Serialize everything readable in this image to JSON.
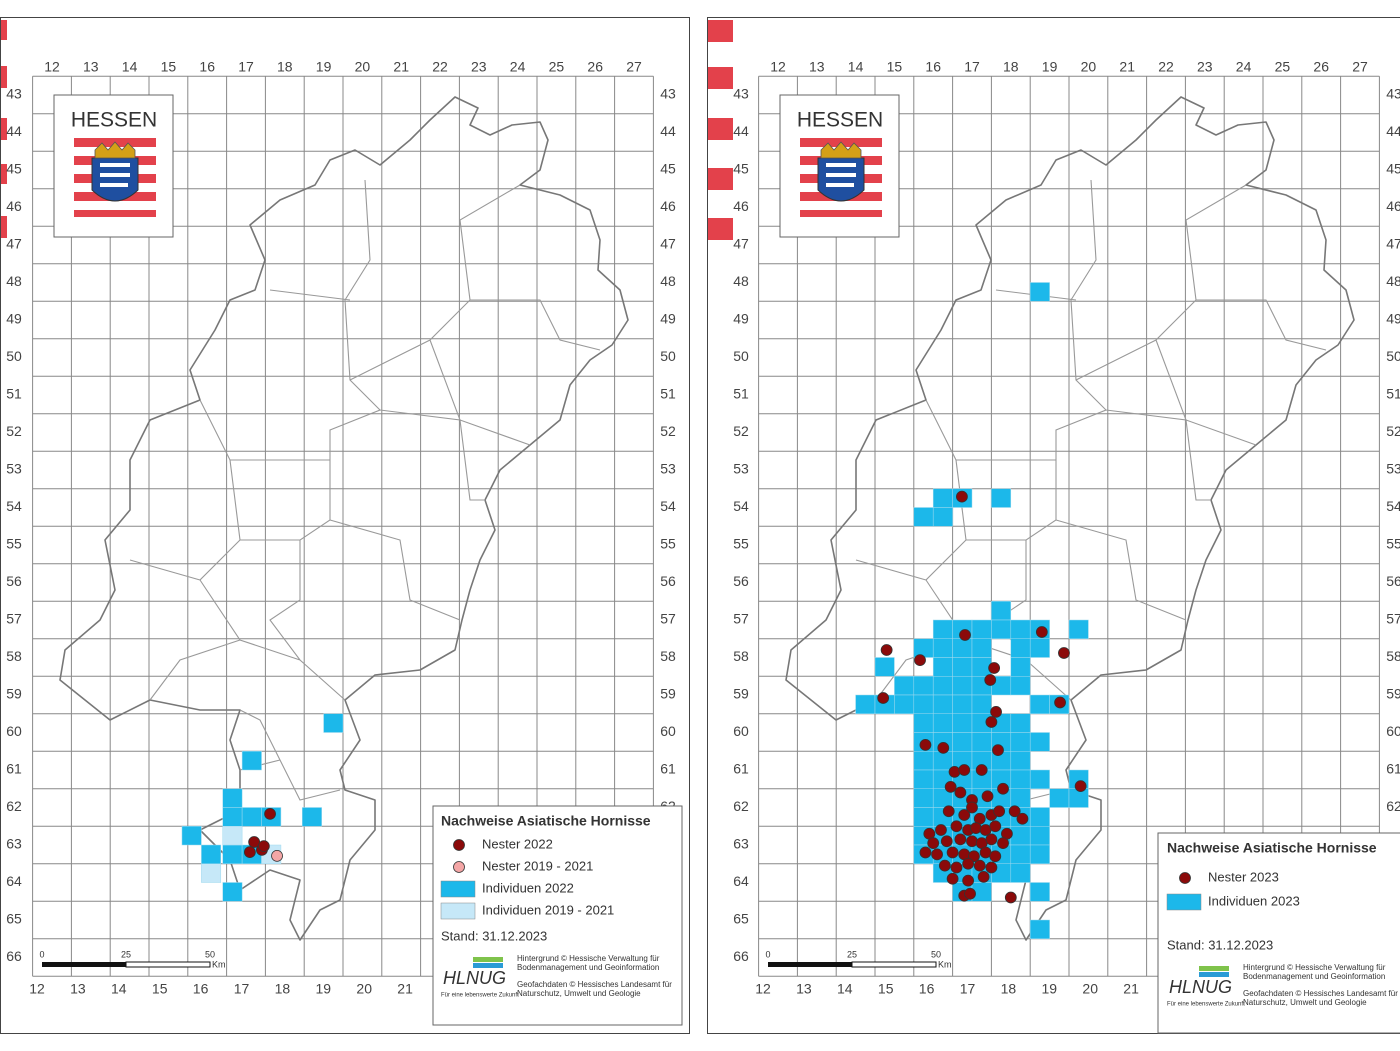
{
  "panels": [
    {
      "logo": "HESSEN",
      "col_labels": [
        12,
        13,
        14,
        15,
        16,
        17,
        18,
        19,
        20,
        21,
        22,
        23,
        24,
        25,
        26,
        27
      ],
      "row_labels": [
        43,
        44,
        45,
        46,
        47,
        48,
        49,
        50,
        51,
        52,
        53,
        54,
        55,
        56,
        57,
        58,
        59,
        60,
        61,
        62,
        63,
        64,
        65,
        66
      ],
      "bottom_labels": [
        12,
        13,
        14,
        15,
        16,
        17,
        18,
        19,
        20,
        21
      ],
      "legend": {
        "title": "Nachweise Asiatische Hornisse",
        "stand": "Stand: 31.12.2023",
        "items": [
          {
            "name": "Nester 2022",
            "kind": "dot",
            "color": "#8b0a0a",
            "points": [
              [
                17.62,
                62.17
              ],
              [
                17.21,
                62.92
              ],
              [
                17.41,
                63.13
              ],
              [
                17.1,
                63.19
              ],
              [
                17.46,
                63.03
              ]
            ]
          },
          {
            "name": "Nester 2019 - 2021",
            "kind": "dot",
            "color": "#f4a6a6",
            "points": [
              [
                17.8,
                63.29
              ]
            ]
          },
          {
            "name": "Individuen 2022",
            "kind": "square",
            "color": "#1cb8ea",
            "rows": [
              {
                "y": 59.75,
                "x": [
                  19.25
                ]
              },
              {
                "y": 60.75,
                "x": [
                  17.15
                ]
              },
              {
                "y": 61.75,
                "x": [
                  16.65
                ]
              },
              {
                "y": 62.25,
                "x": [
                  16.65,
                  17.15,
                  17.65,
                  18.7
                ]
              },
              {
                "y": 62.75,
                "x": [
                  15.6
                ]
              },
              {
                "y": 63.25,
                "x": [
                  16.1,
                  16.65,
                  17.15
                ]
              },
              {
                "y": 64.25,
                "x": [
                  16.65
                ]
              }
            ]
          },
          {
            "name": "Individuen 2019 - 2021",
            "kind": "square",
            "color": "#c6e8f8",
            "rows": [
              {
                "y": 62.75,
                "x": [
                  16.65
                ]
              },
              {
                "y": 63.25,
                "x": [
                  17.65
                ]
              },
              {
                "y": 63.75,
                "x": [
                  16.1
                ]
              }
            ]
          }
        ]
      },
      "scale": {
        "labels": [
          "0",
          "25",
          "50"
        ],
        "unit": "Km"
      },
      "credits": {
        "logo": "HLNUG",
        "tagline": "Für eine lebenswerte Zukunft",
        "lines": [
          "Hintergrund © Hessische Verwaltung für",
          "Bodenmanagement und Geoinformation",
          "Geofachdaten © Hessisches Landesamt für",
          "Naturschutz, Umwelt und Geologie"
        ]
      }
    },
    {
      "logo": "HESSEN",
      "col_labels": [
        12,
        13,
        14,
        15,
        16,
        17,
        18,
        19,
        20,
        21,
        22,
        23,
        24,
        25,
        26,
        27
      ],
      "row_labels": [
        43,
        44,
        45,
        46,
        47,
        48,
        49,
        50,
        51,
        52,
        53,
        54,
        55,
        56,
        57,
        58,
        59,
        60,
        61,
        62,
        63,
        64,
        65,
        66
      ],
      "bottom_labels": [
        12,
        13,
        14,
        15,
        16,
        17,
        18,
        19,
        20,
        21
      ],
      "legend": {
        "title": "Nachweise Asiatische Hornisse",
        "stand": "Stand: 31.12.2023",
        "items": [
          {
            "name": "Nester 2023",
            "kind": "dot",
            "color": "#8b0a0a",
            "points": [
              [
                16.74,
                53.71
              ],
              [
                16.82,
                57.4
              ],
              [
                18.8,
                57.32
              ],
              [
                14.8,
                57.8
              ],
              [
                15.66,
                58.07
              ],
              [
                17.57,
                58.28
              ],
              [
                17.47,
                58.6
              ],
              [
                14.71,
                59.08
              ],
              [
                19.37,
                57.88
              ],
              [
                17.62,
                59.45
              ],
              [
                17.5,
                59.72
              ],
              [
                19.27,
                59.2
              ],
              [
                15.8,
                60.33
              ],
              [
                16.26,
                60.41
              ],
              [
                17.67,
                60.47
              ],
              [
                19.8,
                61.43
              ],
              [
                16.55,
                61.05
              ],
              [
                16.8,
                61.0
              ],
              [
                17.25,
                61.0
              ],
              [
                16.45,
                61.45
              ],
              [
                16.7,
                61.6
              ],
              [
                17.0,
                61.8
              ],
              [
                17.4,
                61.7
              ],
              [
                17.8,
                61.5
              ],
              [
                16.4,
                62.1
              ],
              [
                16.8,
                62.2
              ],
              [
                17.0,
                62.0
              ],
              [
                17.2,
                62.3
              ],
              [
                17.5,
                62.2
              ],
              [
                17.7,
                62.1
              ],
              [
                18.1,
                62.1
              ],
              [
                18.3,
                62.3
              ],
              [
                15.9,
                62.7
              ],
              [
                16.2,
                62.6
              ],
              [
                16.6,
                62.5
              ],
              [
                16.9,
                62.6
              ],
              [
                17.1,
                62.55
              ],
              [
                17.35,
                62.6
              ],
              [
                17.6,
                62.5
              ],
              [
                17.9,
                62.7
              ],
              [
                16.0,
                62.95
              ],
              [
                16.35,
                62.9
              ],
              [
                16.7,
                62.85
              ],
              [
                17.0,
                62.9
              ],
              [
                17.25,
                62.95
              ],
              [
                17.5,
                62.85
              ],
              [
                17.8,
                62.95
              ],
              [
                15.8,
                63.2
              ],
              [
                16.1,
                63.25
              ],
              [
                16.5,
                63.2
              ],
              [
                16.8,
                63.25
              ],
              [
                17.05,
                63.3
              ],
              [
                17.35,
                63.2
              ],
              [
                17.6,
                63.3
              ],
              [
                16.3,
                63.55
              ],
              [
                16.6,
                63.6
              ],
              [
                16.9,
                63.5
              ],
              [
                17.2,
                63.55
              ],
              [
                17.5,
                63.6
              ],
              [
                16.5,
                63.9
              ],
              [
                16.9,
                63.95
              ],
              [
                17.3,
                63.85
              ],
              [
                16.8,
                64.35
              ],
              [
                16.95,
                64.3
              ],
              [
                18.0,
                64.4
              ]
            ]
          },
          {
            "name": "Individuen 2023",
            "kind": "square",
            "color": "#1cb8ea",
            "rows": [
              {
                "y": 48.25,
                "x": [
                  18.75
                ]
              },
              {
                "y": 53.75,
                "x": [
                  16.25,
                  16.75,
                  17.75
                ]
              },
              {
                "y": 54.25,
                "x": [
                  15.75,
                  16.25
                ]
              },
              {
                "y": 56.75,
                "x": [
                  17.75
                ]
              },
              {
                "y": 57.25,
                "x": [
                  16.25,
                  16.75,
                  17.25,
                  17.75,
                  18.25,
                  18.75,
                  19.75
                ]
              },
              {
                "y": 57.75,
                "x": [
                  15.75,
                  16.25,
                  16.75,
                  17.25,
                  18.25,
                  18.75
                ]
              },
              {
                "y": 58.25,
                "x": [
                  14.75,
                  16.25,
                  16.75,
                  17.25,
                  18.25
                ]
              },
              {
                "y": 58.75,
                "x": [
                  15.25,
                  15.75,
                  16.25,
                  16.75,
                  17.25,
                  17.75,
                  18.25
                ]
              },
              {
                "y": 59.25,
                "x": [
                  14.25,
                  14.75,
                  15.25,
                  15.75,
                  16.25,
                  16.75,
                  17.25,
                  18.75,
                  19.25
                ]
              },
              {
                "y": 59.75,
                "x": [
                  15.75,
                  16.25,
                  16.75,
                  17.25,
                  17.75,
                  18.25
                ]
              },
              {
                "y": 60.25,
                "x": [
                  15.75,
                  16.25,
                  16.75,
                  17.25,
                  17.75,
                  18.25,
                  18.75
                ]
              },
              {
                "y": 60.75,
                "x": [
                  15.75,
                  16.25,
                  16.75,
                  17.25,
                  17.75,
                  18.25
                ]
              },
              {
                "y": 61.25,
                "x": [
                  15.75,
                  16.25,
                  16.75,
                  17.25,
                  17.75,
                  18.25,
                  18.75,
                  19.75
                ]
              },
              {
                "y": 61.75,
                "x": [
                  15.75,
                  16.25,
                  16.75,
                  17.25,
                  17.75,
                  18.25,
                  19.25,
                  19.75
                ]
              },
              {
                "y": 62.25,
                "x": [
                  15.75,
                  16.25,
                  16.75,
                  17.25,
                  17.75,
                  18.25,
                  18.75
                ]
              },
              {
                "y": 62.75,
                "x": [
                  15.75,
                  16.25,
                  16.75,
                  17.25,
                  17.75,
                  18.25,
                  18.75
                ]
              },
              {
                "y": 63.25,
                "x": [
                  15.75,
                  16.25,
                  16.75,
                  17.25,
                  17.75,
                  18.25,
                  18.75
                ]
              },
              {
                "y": 63.75,
                "x": [
                  16.25,
                  16.75,
                  17.25,
                  17.75,
                  18.25
                ]
              },
              {
                "y": 64.25,
                "x": [
                  16.75,
                  17.25,
                  18.75
                ]
              },
              {
                "y": 65.25,
                "x": [
                  18.75
                ]
              }
            ]
          }
        ]
      },
      "scale": {
        "labels": [
          "0",
          "25",
          "50"
        ],
        "unit": "Km"
      },
      "credits": {
        "logo": "HLNUG",
        "tagline": "Für eine lebenswerte Zukunft",
        "lines": [
          "Hintergrund © Hessische Verwaltung für",
          "Bodenmanagement und Geoinformation",
          "Geofachdaten © Hessisches Landesamt für",
          "Naturschutz, Umwelt und Geologie"
        ]
      }
    }
  ]
}
